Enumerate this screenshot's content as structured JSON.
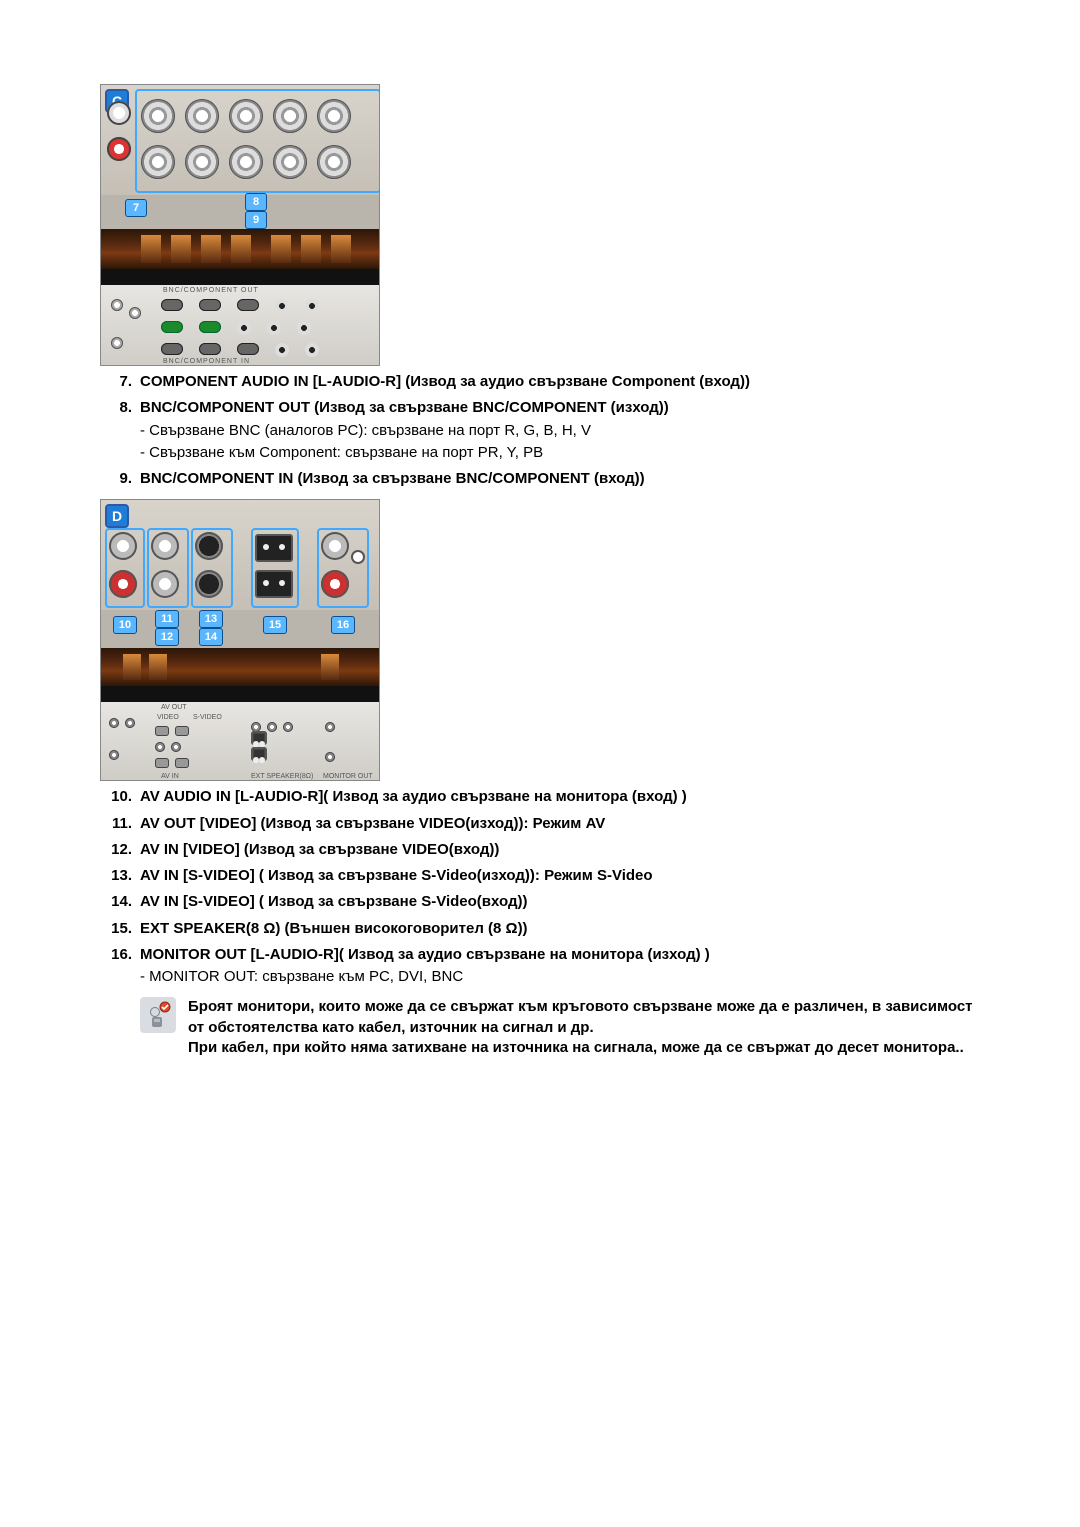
{
  "figureC": {
    "badge": "C",
    "callouts": {
      "c7": "7",
      "c8": "8",
      "c9": "9"
    },
    "labels": {
      "top": "BNC/COMPONENT OUT",
      "bottom": "BNC/COMPONENT IN"
    },
    "colors": {
      "panel_bg_top": "#d8d4cc",
      "panel_bg_bottom": "#c5bfb6",
      "badge_bg": "#1e7dd6",
      "outline": "#3fa8ff",
      "callout_bg": "#59b6ff",
      "rca_white": "#ffffff",
      "rca_red": "#d33333",
      "bnc_green": "#1a8a2a",
      "bnc_gray": "#666666"
    }
  },
  "figureD": {
    "badge": "D",
    "callouts": {
      "c10": "10",
      "c11": "11",
      "c12": "12",
      "c13": "13",
      "c14": "14",
      "c15": "15",
      "c16": "16"
    },
    "labels": {
      "avout": "AV OUT",
      "video": "VIDEO",
      "svideo": "S-VIDEO",
      "avin": "AV IN",
      "ext": "EXT SPEAKER(8Ω)",
      "mon": "MONITOR OUT"
    },
    "colors": {
      "panel_bg_top": "#d8d4cc",
      "panel_bg_bottom": "#c5bfb6",
      "badge_bg": "#1e7dd6",
      "outline": "#3fa8ff",
      "callout_bg": "#59b6ff",
      "port_red": "#cc3030",
      "port_gray": "#bbbbbb"
    }
  },
  "listC": [
    {
      "num": "7.",
      "title": "COMPONENT AUDIO IN [L-AUDIO-R] (Извод за аудио свързване Component (вход))",
      "subs": []
    },
    {
      "num": "8.",
      "title": "BNC/COMPONENT OUT (Извод за свързване BNC/COMPONENT (изход))",
      "subs": [
        "- Свързване BNC (аналогов PC): свързване на порт R, G, B, H, V",
        "- Свързване към Component: свързване на порт PR, Y, PB"
      ]
    },
    {
      "num": "9.",
      "title": "BNC/COMPONENT IN (Извод за свързване BNC/COMPONENT (вход))",
      "subs": []
    }
  ],
  "listD": [
    {
      "num": "10.",
      "title": "AV AUDIO IN [L-AUDIO-R]( Извод за аудио свързване на монитора (вход) )",
      "subs": []
    },
    {
      "num": "11.",
      "title": "AV OUT [VIDEO] (Извод за свързване VIDEO(изход)): Режим AV",
      "subs": []
    },
    {
      "num": "12.",
      "title": "AV IN [VIDEO] (Извод за свързване VIDEO(вход))",
      "subs": []
    },
    {
      "num": "13.",
      "title": "AV IN [S-VIDEO] ( Извод за свързване S-Video(изход)): Режим S-Video",
      "subs": []
    },
    {
      "num": "14.",
      "title": "AV IN [S-VIDEO] ( Извод за свързване S-Video(вход))",
      "subs": []
    },
    {
      "num": "15.",
      "title": "EXT SPEAKER(8 Ω) (Външен високоговорител (8 Ω))",
      "subs": []
    },
    {
      "num": "16.",
      "title": "MONITOR OUT [L-AUDIO-R]( Извод за аудио свързване на монитора (изход) )",
      "subs": [
        "- MONITOR OUT: свързване към PC, DVI, BNC"
      ]
    }
  ],
  "note": {
    "line1": "Броят монитори, които може да се свържат към кръговото свързване може да е различен, в зависимост от обстоятелства като кабел, източник на сигнал и др.",
    "line2": "При кабел, при който няма затихване на източника на сигнала, може да се свържат до десет монитора.."
  },
  "style": {
    "body_font_size": 15,
    "text_color": "#000000",
    "page_bg": "#ffffff",
    "figure_border": "#888888"
  }
}
